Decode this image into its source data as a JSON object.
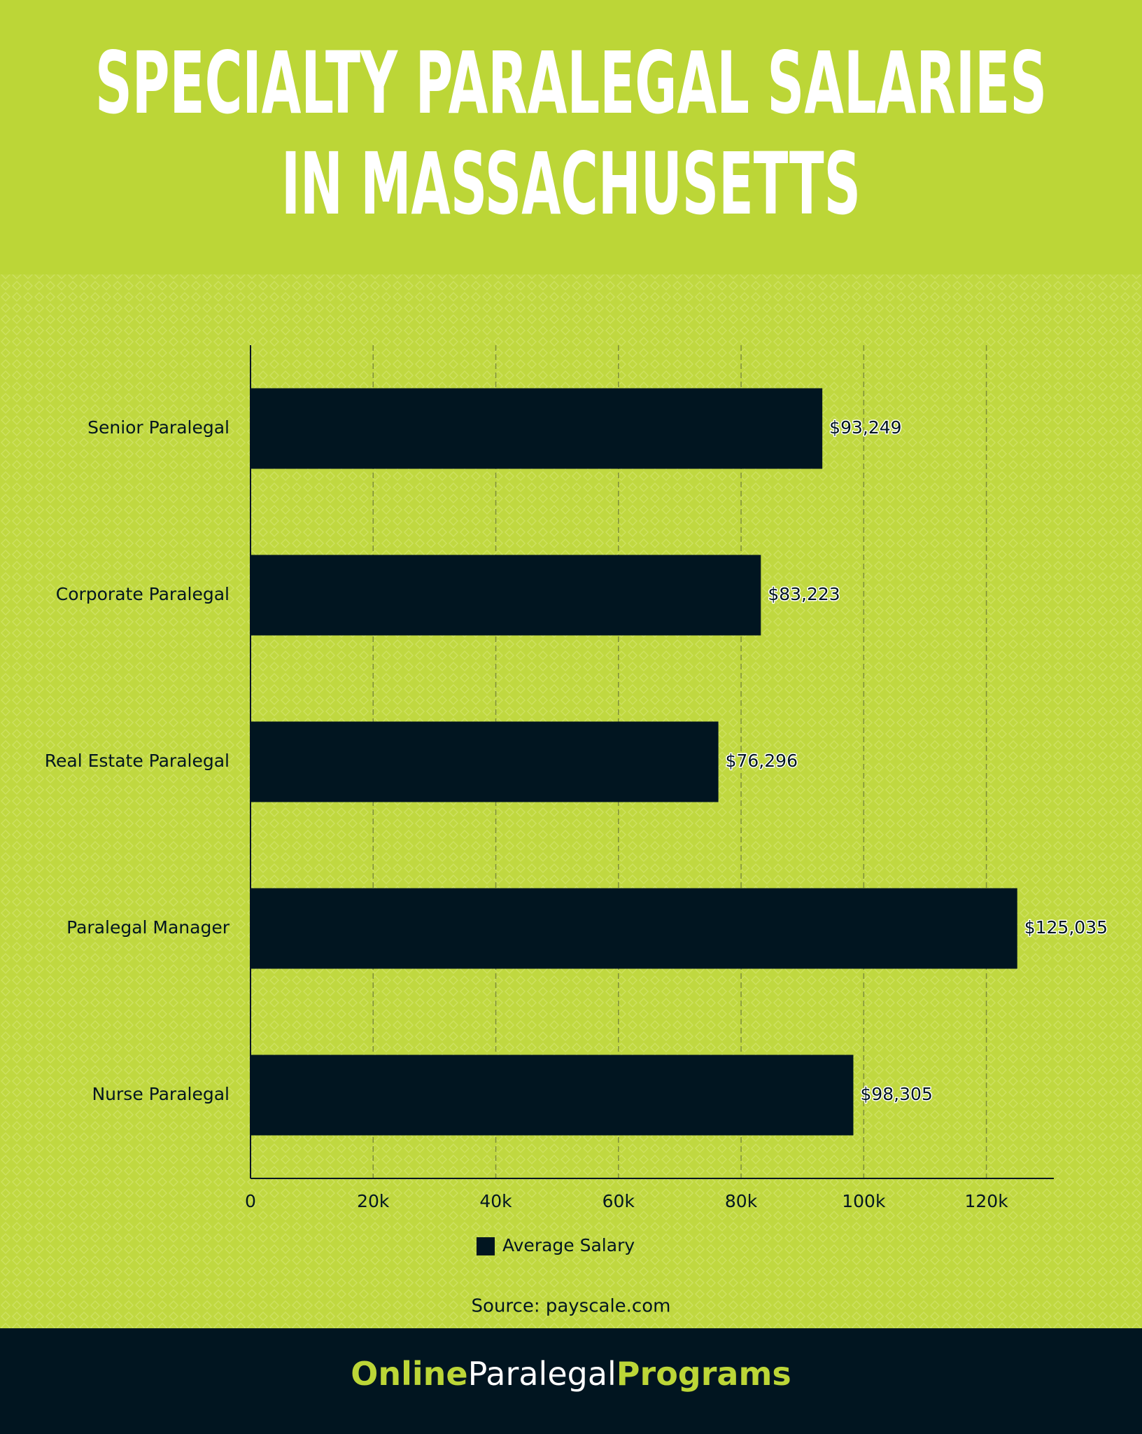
{
  "chart_data": {
    "type": "bar",
    "orientation": "horizontal",
    "title": [
      "SPECIALTY PARALEGAL SALARIES",
      "IN MASSACHUSETTS"
    ],
    "categories": [
      "Senior Paralegal",
      "Corporate Paralegal",
      "Real Estate Paralegal",
      "Paralegal Manager",
      "Nurse Paralegal"
    ],
    "series": [
      {
        "name": "Average Salary",
        "color": "#011520",
        "values": [
          93249,
          83223,
          76296,
          125035,
          98305
        ],
        "value_labels": [
          "$93,249",
          "$83,223",
          "$76,296",
          "$125,035",
          "$98,305"
        ]
      }
    ],
    "xlim": [
      0,
      131000
    ],
    "xticks": [
      0,
      {
        "value": 20000,
        "label": "20k"
      },
      {
        "value": 40000,
        "label": "40k"
      },
      {
        "value": 60000,
        "label": "60k"
      },
      {
        "value": 80000,
        "label": "80k"
      },
      {
        "value": 100000,
        "label": "100k"
      },
      {
        "value": 120000,
        "label": "120k"
      }
    ],
    "grid": true,
    "source": "Source: payscale.com",
    "footer": {
      "part1": "Online",
      "part2": "Paralegal",
      "part3": "Programs"
    }
  }
}
